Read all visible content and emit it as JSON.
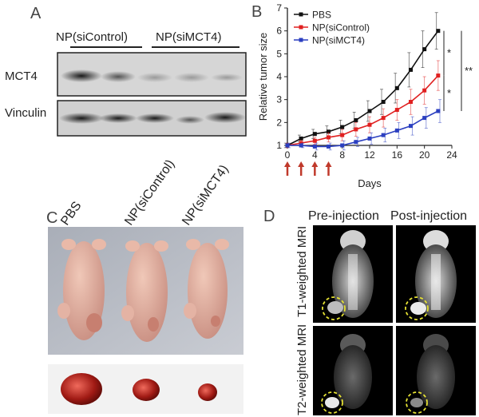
{
  "panels": {
    "A": {
      "letter": "A",
      "group_labels": [
        "NP(siControl)",
        "NP(siMCT4)"
      ],
      "row_labels": [
        "MCT4",
        "Vinculin"
      ]
    },
    "B": {
      "letter": "B"
    },
    "C": {
      "letter": "C",
      "column_labels": [
        "PBS",
        "NP(siControl)",
        "NP(siMCT4)"
      ]
    },
    "D": {
      "letter": "D",
      "column_labels": [
        "Pre-injection",
        "Post-injection"
      ],
      "row_labels": [
        "T1-weighted MRI",
        "T2-weighted MRI"
      ]
    }
  },
  "chart_data": {
    "type": "line",
    "title": "",
    "xlabel": "Days",
    "ylabel": "Relative tumor size",
    "xlim": [
      0,
      24
    ],
    "ylim": [
      1,
      7
    ],
    "x_ticks": [
      0,
      4,
      8,
      12,
      16,
      20,
      24
    ],
    "y_ticks": [
      1,
      2,
      3,
      4,
      5,
      6,
      7
    ],
    "x": [
      0,
      2,
      4,
      6,
      8,
      10,
      12,
      14,
      16,
      18,
      20,
      22
    ],
    "series": [
      {
        "name": "PBS",
        "color": "#111111",
        "marker": "square",
        "values": [
          1.0,
          1.3,
          1.5,
          1.6,
          1.8,
          2.1,
          2.5,
          2.9,
          3.5,
          4.3,
          5.2,
          6.0
        ],
        "errors": [
          0.1,
          0.15,
          0.2,
          0.25,
          0.3,
          0.35,
          0.45,
          0.55,
          0.65,
          0.75,
          0.8,
          0.8
        ]
      },
      {
        "name": "NP(siControl)",
        "color": "#e02020",
        "marker": "square",
        "values": [
          1.0,
          1.1,
          1.2,
          1.35,
          1.45,
          1.7,
          1.9,
          2.2,
          2.55,
          2.9,
          3.4,
          4.05
        ],
        "errors": [
          0.1,
          0.12,
          0.15,
          0.2,
          0.25,
          0.3,
          0.35,
          0.4,
          0.45,
          0.55,
          0.6,
          0.65
        ]
      },
      {
        "name": "NP(siMCT4)",
        "color": "#2b3fc0",
        "marker": "square",
        "values": [
          1.0,
          1.0,
          0.95,
          0.95,
          1.0,
          1.15,
          1.3,
          1.45,
          1.65,
          1.85,
          2.2,
          2.5
        ],
        "errors": [
          0.1,
          0.1,
          0.15,
          0.15,
          0.2,
          0.2,
          0.25,
          0.3,
          0.35,
          0.4,
          0.45,
          0.5
        ]
      }
    ],
    "legend_position": "top-left",
    "significance": [
      "*",
      "**",
      "*"
    ],
    "injection_days": [
      0,
      2,
      4,
      6
    ],
    "arrow_color": "#c0392b"
  }
}
